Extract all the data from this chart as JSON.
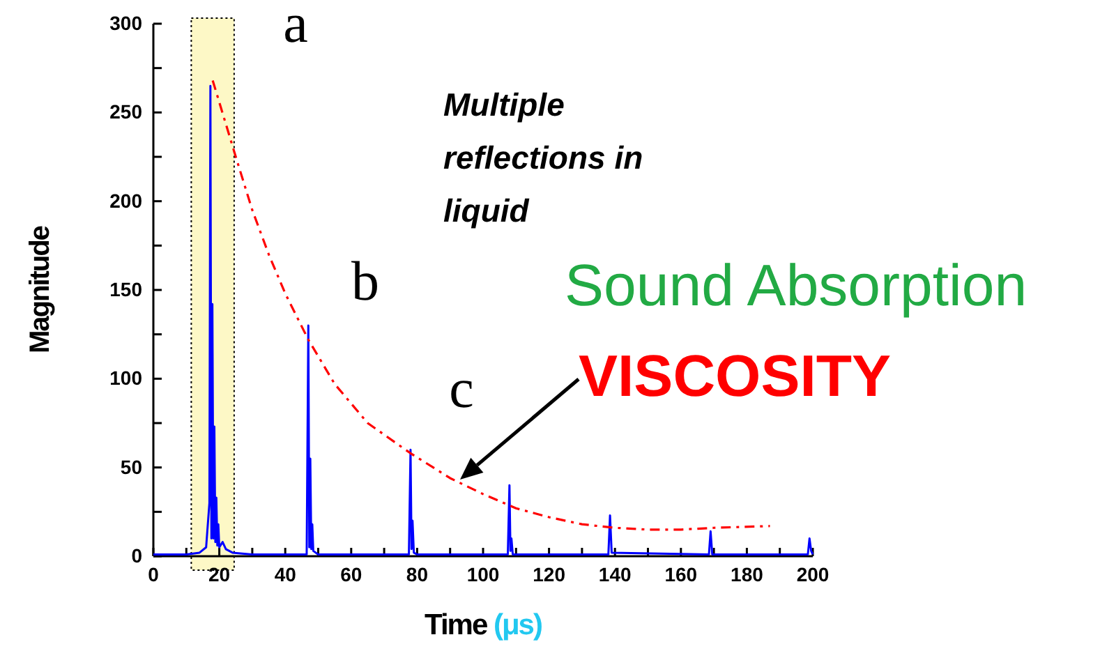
{
  "chart_data": {
    "type": "line",
    "xlabel": "Time (μs)",
    "ylabel": "Magnitude",
    "xlim": [
      0,
      200
    ],
    "ylim": [
      0,
      300
    ],
    "xticks": [
      0,
      {
        "value": 10,
        "label": null
      },
      20,
      {
        "value": 30,
        "label": null
      },
      40,
      {
        "value": 50,
        "label": null
      },
      60,
      {
        "value": 70,
        "label": null
      },
      80,
      {
        "value": 90,
        "label": null
      },
      100,
      {
        "value": 110,
        "label": null
      },
      120,
      {
        "value": 130,
        "label": null
      },
      140,
      {
        "value": 150,
        "label": null
      },
      160,
      {
        "value": 170,
        "label": null
      },
      180,
      {
        "value": 190,
        "label": null
      },
      200
    ],
    "yticks": [
      0,
      {
        "value": 25,
        "label": null
      },
      50,
      {
        "value": 75,
        "label": null
      },
      100,
      {
        "value": 125,
        "label": null
      },
      150,
      {
        "value": 175,
        "label": null
      },
      200,
      {
        "value": 225,
        "label": null
      },
      250,
      {
        "value": 275,
        "label": null
      },
      300
    ],
    "grid": false,
    "series": [
      {
        "color": "#0000ff",
        "line_style": "solid",
        "x": [
          0,
          10,
          14,
          16,
          17,
          17.3,
          17.6,
          17.9,
          18.2,
          18.5,
          18.8,
          19.1,
          19.4,
          19.7,
          20,
          21,
          22,
          24,
          30,
          46.5,
          47,
          47.3,
          47.6,
          47.9,
          48.2,
          48.5,
          50,
          77.5,
          78,
          78.3,
          78.6,
          79,
          80,
          107.5,
          108,
          108.3,
          108.6,
          109,
          138,
          138.5,
          139,
          168.5,
          169,
          169.5,
          198.5,
          199,
          199.5,
          200
        ],
        "values": [
          1,
          1,
          2,
          5,
          30,
          265,
          10,
          142,
          10,
          73,
          8,
          33,
          6,
          18,
          5,
          8,
          4,
          2,
          1,
          1,
          130,
          5,
          55,
          4,
          18,
          3,
          1,
          1,
          60,
          4,
          20,
          2,
          1,
          1,
          40,
          3,
          10,
          1,
          1,
          23,
          2,
          1,
          14,
          1,
          1,
          10,
          3,
          1
        ]
      },
      {
        "color": "#ff0000",
        "line_style": "dashdot",
        "x": [
          18,
          25,
          30,
          35,
          40,
          47,
          55,
          65,
          78,
          90,
          100,
          110,
          120,
          130,
          140,
          150,
          160,
          170,
          187
        ],
        "values": [
          268,
          225,
          195,
          170,
          148,
          122,
          97,
          75,
          58,
          44,
          35,
          27,
          22,
          18,
          16,
          15,
          15,
          16,
          17
        ]
      }
    ],
    "bands": [
      {
        "axis": "x",
        "from": 11.5,
        "to": 24.5,
        "color": "#fdf8c6"
      }
    ],
    "annotations": [
      "a",
      "b",
      "c",
      "Multiple reflections in liquid",
      "Sound Absorption",
      "VISCOSITY"
    ]
  }
}
